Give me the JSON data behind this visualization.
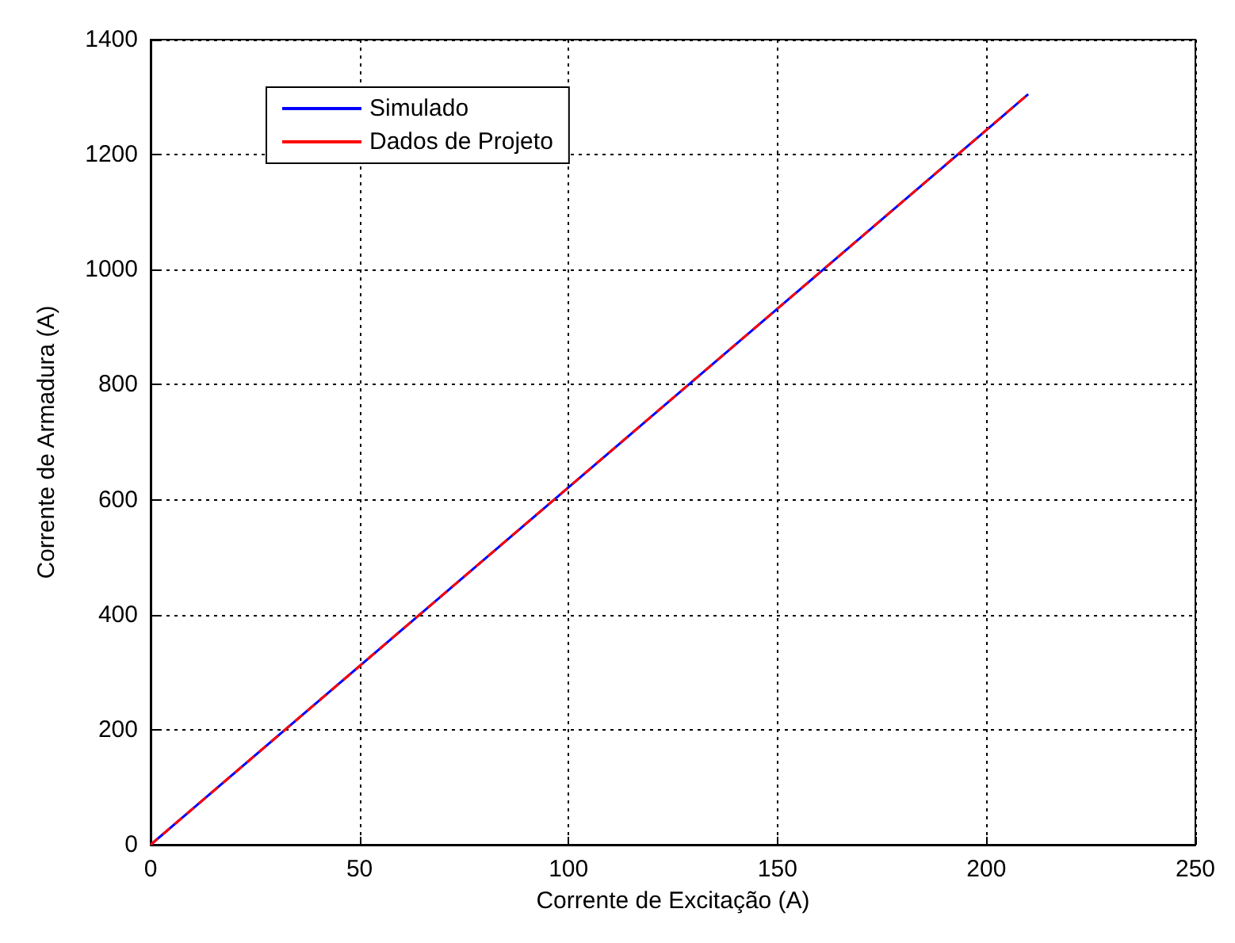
{
  "chart_data": {
    "type": "line",
    "xlabel": "Corrente de Excitação (A)",
    "ylabel": "Corrente de Armadura (A)",
    "x": [
      0,
      210
    ],
    "series": [
      {
        "name": "Simulado",
        "color": "#0000ff",
        "values": [
          0,
          1305
        ]
      },
      {
        "name": "Dados de Projeto",
        "color": "#ff0000",
        "values": [
          0,
          1305
        ],
        "line_style": "dashed"
      }
    ],
    "xlim": [
      0,
      250
    ],
    "xticks": [
      0,
      50,
      100,
      150,
      200,
      250
    ],
    "ylim": [
      0,
      1400
    ],
    "yticks": [
      0,
      200,
      400,
      600,
      800,
      1000,
      1200,
      1400
    ],
    "grid": true,
    "legend": "top left",
    "marker": "none",
    "line_style": "solid"
  }
}
